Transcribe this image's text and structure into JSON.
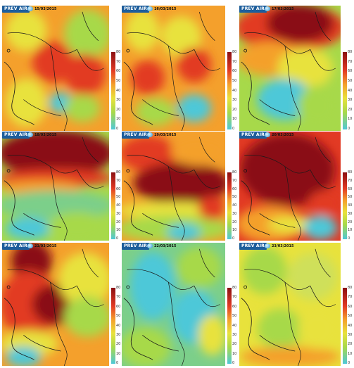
{
  "colorbar": {
    "ticks": [
      "80",
      "70",
      "60",
      "50",
      "40",
      "30",
      "20",
      "10",
      "0"
    ],
    "colors": [
      "#4ec8d8",
      "#a7d94a",
      "#e8e23c",
      "#f4a02c",
      "#e23a24",
      "#8a0f12"
    ]
  },
  "panels": [
    {
      "logo": "PREV AIR",
      "date": "15/03/2015",
      "pattern": "mixed-warm"
    },
    {
      "logo": "PREV AIR",
      "date": "16/03/2015",
      "pattern": "orange-high"
    },
    {
      "logo": "PREV AIR",
      "date": "17/03/2015",
      "pattern": "north-red"
    },
    {
      "logo": "PREV AIR",
      "date": "18/03/2015",
      "pattern": "north-dark-red"
    },
    {
      "logo": "PREV AIR",
      "date": "19/03/2015",
      "pattern": "band-dark-red"
    },
    {
      "logo": "PREV AIR",
      "date": "20/03/2015",
      "pattern": "widespread-dark-red"
    },
    {
      "logo": "PREV AIR",
      "date": "21/03/2015",
      "pattern": "west-red"
    },
    {
      "logo": "PREV AIR",
      "date": "22/03/2015",
      "pattern": "cyan-low"
    },
    {
      "logo": "PREV AIR",
      "date": "23/03/2015",
      "pattern": "yellow-green"
    }
  ]
}
